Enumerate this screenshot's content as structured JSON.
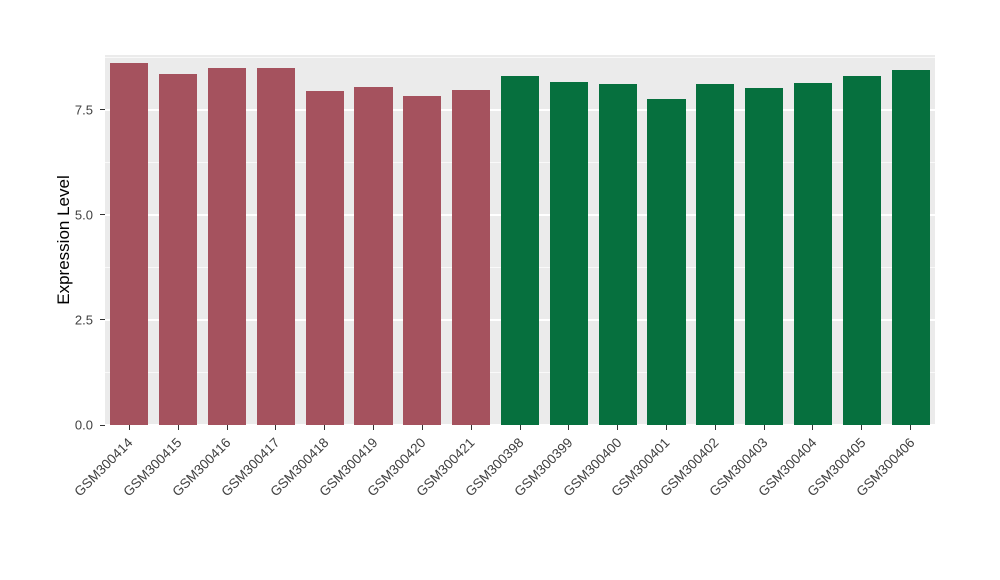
{
  "chart_data": {
    "type": "bar",
    "title": "",
    "xlabel": "",
    "ylabel": "Expression Level",
    "ylim": [
      0,
      8.8
    ],
    "grid": true,
    "legend": "none",
    "panel_bg": "#EBEBEB",
    "grid_color": "#FFFFFF",
    "tick_text_color": "#404040",
    "axis_title_color": "#000000",
    "group_colors": {
      "group1": "#A5525E",
      "group2": "#06703E"
    },
    "yticks": [
      {
        "value": 0,
        "label": "0.0"
      },
      {
        "value": 2.5,
        "label": "2.5"
      },
      {
        "value": 5,
        "label": "5.0"
      },
      {
        "value": 7.5,
        "label": "7.5"
      }
    ],
    "minor_gridlines": [
      1.25,
      3.75,
      6.25,
      8.75
    ],
    "categories": [
      "GSM300414",
      "GSM300415",
      "GSM300416",
      "GSM300417",
      "GSM300418",
      "GSM300419",
      "GSM300420",
      "GSM300421",
      "GSM300398",
      "GSM300399",
      "GSM300400",
      "GSM300401",
      "GSM300402",
      "GSM300403",
      "GSM300404",
      "GSM300405",
      "GSM300406"
    ],
    "values": [
      8.6,
      8.35,
      8.5,
      8.48,
      7.95,
      8.03,
      7.83,
      7.97,
      8.3,
      8.15,
      8.1,
      7.75,
      8.12,
      8.02,
      8.13,
      8.3,
      8.45
    ],
    "bar_colors": [
      "#A5525E",
      "#A5525E",
      "#A5525E",
      "#A5525E",
      "#A5525E",
      "#A5525E",
      "#A5525E",
      "#A5525E",
      "#06703E",
      "#06703E",
      "#06703E",
      "#06703E",
      "#06703E",
      "#06703E",
      "#06703E",
      "#06703E",
      "#06703E"
    ]
  }
}
